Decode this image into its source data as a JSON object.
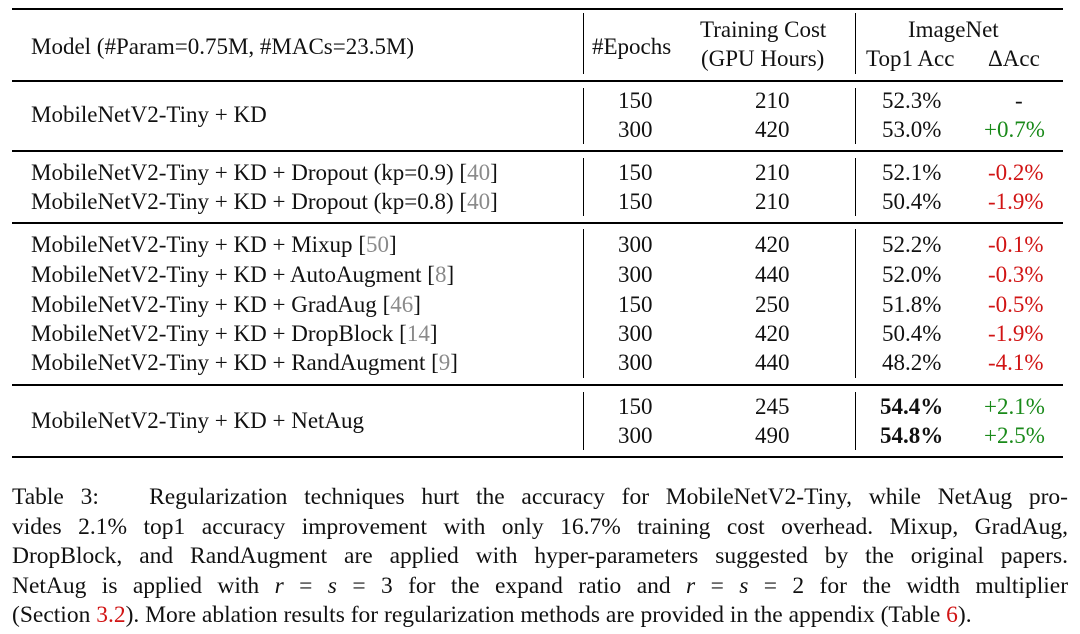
{
  "table": {
    "header": {
      "model": "Model (#Param=0.75M, #MACs=23.5M)",
      "epochs": "#Epochs",
      "cost_line1": "Training Cost",
      "cost_line2": "(GPU Hours)",
      "group": "ImageNet",
      "top1": "Top1 Acc",
      "delta": "ΔAcc"
    },
    "groups": [
      {
        "rows": [
          {
            "model": "MobileNetV2-Tiny + KD",
            "ref": "",
            "sub": [
              {
                "epochs": "150",
                "cost": "210",
                "top1": "52.3%",
                "delta": "-",
                "delta_color": "#111111",
                "bold": false
              },
              {
                "epochs": "300",
                "cost": "420",
                "top1": "53.0%",
                "delta": "+0.7%",
                "delta_color": "#1a8a1a",
                "bold": false
              }
            ]
          }
        ]
      },
      {
        "rows": [
          {
            "model": "MobileNetV2-Tiny + KD + Dropout (kp=0.9)",
            "ref": "40",
            "epochs": "150",
            "cost": "210",
            "top1": "52.1%",
            "delta": "-0.2%"
          },
          {
            "model": "MobileNetV2-Tiny + KD + Dropout (kp=0.8)",
            "ref": "40",
            "epochs": "150",
            "cost": "210",
            "top1": "50.4%",
            "delta": "-1.9%"
          }
        ]
      },
      {
        "rows": [
          {
            "model": "MobileNetV2-Tiny + KD + Mixup",
            "ref": "50",
            "epochs": "300",
            "cost": "420",
            "top1": "52.2%",
            "delta": "-0.1%"
          },
          {
            "model": "MobileNetV2-Tiny + KD + AutoAugment",
            "ref": "8",
            "epochs": "300",
            "cost": "440",
            "top1": "52.0%",
            "delta": "-0.3%"
          },
          {
            "model": "MobileNetV2-Tiny + KD + GradAug",
            "ref": "46",
            "epochs": "150",
            "cost": "250",
            "top1": "51.8%",
            "delta": "-0.5%"
          },
          {
            "model": "MobileNetV2-Tiny + KD + DropBlock",
            "ref": "14",
            "epochs": "300",
            "cost": "420",
            "top1": "50.4%",
            "delta": "-1.9%"
          },
          {
            "model": "MobileNetV2-Tiny + KD + RandAugment",
            "ref": "9",
            "epochs": "300",
            "cost": "440",
            "top1": "48.2%",
            "delta": "-4.1%"
          }
        ]
      },
      {
        "rows": [
          {
            "model": "MobileNetV2-Tiny + KD + NetAug",
            "ref": "",
            "sub": [
              {
                "epochs": "150",
                "cost": "245",
                "top1": "54.4%",
                "delta": "+2.1%"
              },
              {
                "epochs": "300",
                "cost": "490",
                "top1": "54.8%",
                "delta": "+2.5%"
              }
            ]
          }
        ]
      }
    ]
  },
  "caption": {
    "label": "Table 3:",
    "line1": "Regularization techniques hurt the accuracy for MobileNetV2-Tiny, while NetAug pro-",
    "line2": "vides 2.1% top1 accuracy improvement with only 16.7% training cost overhead. Mixup, GradAug,",
    "line3": "DropBlock, and RandAugment are applied with hyper-parameters suggested by the original papers.",
    "line4_a": "NetAug is applied with",
    "line4_math1": "r",
    "line4_eq1": "=",
    "line4_math2": "s",
    "line4_eq2": "= 3",
    "line4_b": "for the expand ratio and",
    "line4_math3": "r",
    "line4_eq3": "=",
    "line4_math4": "s",
    "line4_eq4": "= 2",
    "line4_c": "for the width multiplier",
    "line5_a": "(Section",
    "line5_ref1": "3.2",
    "line5_b": "). More ablation results for regularization methods are provided in the appendix (Table",
    "line5_ref2": "6",
    "line5_c": ")."
  },
  "colors": {
    "positive": "#1a8a1a",
    "negative": "#d11414",
    "citation": "#8a8a8a"
  }
}
